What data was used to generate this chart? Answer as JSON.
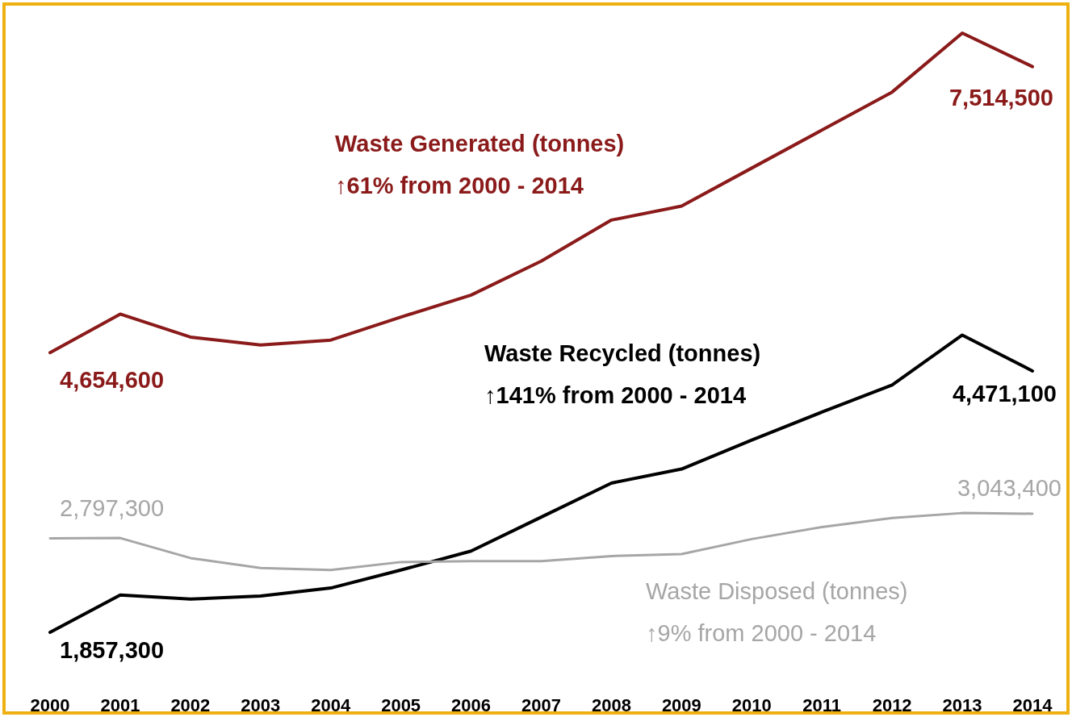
{
  "chart_data": {
    "type": "line",
    "categories": [
      "2000",
      "2001",
      "2002",
      "2003",
      "2004",
      "2005",
      "2006",
      "2007",
      "2008",
      "2009",
      "2010",
      "2011",
      "2012",
      "2013",
      "2014"
    ],
    "tick_labels": "x",
    "series": [
      {
        "name": "Waste Generated (tonnes)",
        "color": "#8b1a1a",
        "values": [
          4654600,
          5040000,
          4810000,
          4730000,
          4780000,
          5010000,
          5230000,
          5570000,
          5980000,
          6120000,
          6500000,
          6880000,
          7260000,
          7850000,
          7514500
        ],
        "value_labels": [
          "4,654,600",
          null,
          null,
          null,
          null,
          null,
          null,
          null,
          null,
          null,
          null,
          null,
          null,
          null,
          "7,514,500"
        ]
      },
      {
        "name": "Waste Recycled (tonnes)",
        "color": "#000000",
        "values": [
          1857300,
          2230000,
          2190000,
          2220000,
          2300000,
          2480000,
          2670000,
          3010000,
          3350000,
          3490000,
          3780000,
          4060000,
          4330000,
          4830000,
          4471100
        ],
        "value_labels": [
          "1,857,300",
          null,
          null,
          null,
          null,
          null,
          null,
          null,
          null,
          null,
          null,
          null,
          null,
          null,
          "4,471,100"
        ]
      },
      {
        "name": "Waste Disposed (tonnes)",
        "color": "#a6a6a6",
        "values": [
          2797300,
          2800000,
          2600000,
          2500000,
          2480000,
          2560000,
          2570000,
          2570000,
          2620000,
          2640000,
          2790000,
          2910000,
          3000000,
          3050000,
          3043400
        ],
        "value_labels": [
          "2,797,300",
          null,
          null,
          null,
          null,
          null,
          null,
          null,
          null,
          null,
          null,
          null,
          null,
          null,
          "3,043,400"
        ]
      }
    ],
    "annotations": [
      "↑61% from 2000 - 2014",
      "↑141% from 2000 - 2014",
      "↑9% from 2000 - 2014"
    ]
  }
}
